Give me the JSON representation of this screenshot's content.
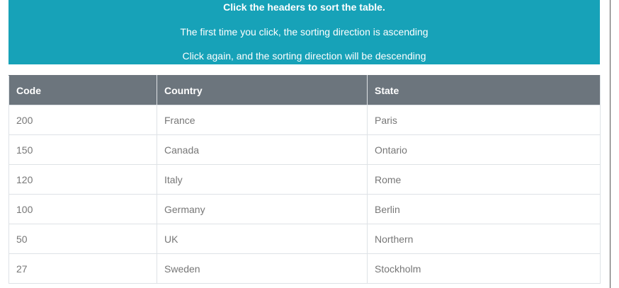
{
  "banner": {
    "line1": "Click the headers to sort the table.",
    "line2": "The first time you click, the sorting direction is ascending",
    "line3": "Click again, and the sorting direction will be descending",
    "background": "#17a2b8"
  },
  "table": {
    "headers": {
      "code": "Code",
      "country": "Country",
      "state": "State"
    },
    "header_background": "#6c757d",
    "rows": [
      {
        "code": "200",
        "country": "France",
        "state": "Paris"
      },
      {
        "code": "150",
        "country": "Canada",
        "state": "Ontario"
      },
      {
        "code": "120",
        "country": "Italy",
        "state": "Rome"
      },
      {
        "code": "100",
        "country": "Germany",
        "state": "Berlin"
      },
      {
        "code": "50",
        "country": "UK",
        "state": "Northern"
      },
      {
        "code": "27",
        "country": "Sweden",
        "state": "Stockholm"
      }
    ]
  }
}
